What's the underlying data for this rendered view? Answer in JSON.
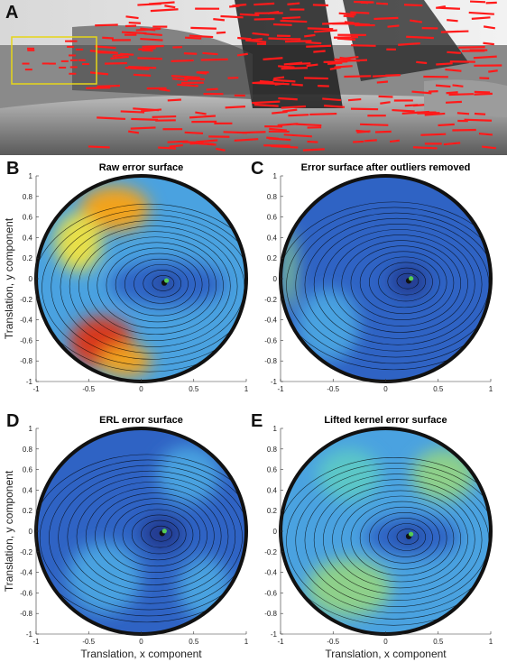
{
  "figure": {
    "photo_panel": {
      "letter": "A"
    },
    "x_axis_label": "Translation, x component",
    "y_axis_label": "Translation, y component"
  },
  "colors": {
    "flow_vectors": "#ff1a1a",
    "roi_box": "#e6d619",
    "minimum_marker_dark": "#111111",
    "minimum_marker_green": "#55cc55",
    "colormap": [
      "#233a8f",
      "#2f63c4",
      "#4aa2e0",
      "#5cc7c7",
      "#8ed08a",
      "#e8e04a",
      "#f2a31b",
      "#d8391b",
      "#9b0f10"
    ]
  },
  "chart_data": [
    {
      "type": "heatmap",
      "letter": "B",
      "title": "Raw error surface",
      "xlabel": "",
      "ylabel": "Translation, y component",
      "xlim": [
        -1,
        1
      ],
      "ylim": [
        -1,
        1
      ],
      "xticks": [
        "-1",
        "-0.5",
        "0",
        "0.5",
        "1"
      ],
      "yticks": [
        "1",
        "0.8",
        "0.6",
        "0.4",
        "0.2",
        "0",
        "-0.2",
        "-0.4",
        "-0.6",
        "-0.8",
        "-1"
      ],
      "domain": "unit disk",
      "minimum": {
        "x": 0.22,
        "y": -0.04
      },
      "regions": [
        {
          "level": 0.08,
          "x": 0.25,
          "y": -0.05,
          "rx": 0.55,
          "ry": 0.22
        },
        {
          "level": 0.0,
          "x": 0.22,
          "y": -0.04,
          "rx": 0.12,
          "ry": 0.08
        },
        {
          "level": 0.72,
          "x": -0.25,
          "y": 0.68,
          "rx": 0.33,
          "ry": 0.22
        },
        {
          "level": 0.58,
          "x": -0.6,
          "y": 0.35,
          "rx": 0.22,
          "ry": 0.28
        },
        {
          "level": 0.92,
          "x": -0.38,
          "y": -0.62,
          "rx": 0.3,
          "ry": 0.25
        },
        {
          "level": 0.8,
          "x": -0.15,
          "y": -0.8,
          "rx": 0.25,
          "ry": 0.15
        }
      ],
      "base_level": 0.3
    },
    {
      "type": "heatmap",
      "letter": "C",
      "title": "Error surface after outliers removed",
      "xlabel": "",
      "ylabel": "",
      "xlim": [
        -1,
        1
      ],
      "ylim": [
        -1,
        1
      ],
      "xticks": [
        "-1",
        "-0.5",
        "0",
        "0.5",
        "1"
      ],
      "yticks": [
        "1",
        "0.8",
        "0.6",
        "0.4",
        "0.2",
        "0",
        "-0.2",
        "-0.4",
        "-0.6",
        "-0.8",
        "-1"
      ],
      "domain": "unit disk",
      "minimum": {
        "x": 0.22,
        "y": -0.02
      },
      "regions": [
        {
          "level": 0.28,
          "x": -0.55,
          "y": -0.45,
          "rx": 0.3,
          "ry": 0.35
        },
        {
          "level": 0.45,
          "x": -0.92,
          "y": 0.1,
          "rx": 0.06,
          "ry": 0.4
        },
        {
          "level": 0.02,
          "x": 0.22,
          "y": -0.02,
          "rx": 0.18,
          "ry": 0.16
        }
      ],
      "base_level": 0.1
    },
    {
      "type": "heatmap",
      "letter": "D",
      "title": "ERL error surface",
      "xlabel": "Translation, x component",
      "ylabel": "Translation, y component",
      "xlim": [
        -1,
        1
      ],
      "ylim": [
        -1,
        1
      ],
      "xticks": [
        "-1",
        "-0.5",
        "0",
        "0.5",
        "1"
      ],
      "yticks": [
        "1",
        "0.8",
        "0.6",
        "0.4",
        "0.2",
        "0",
        "-0.2",
        "-0.4",
        "-0.6",
        "-0.8",
        "-1"
      ],
      "domain": "unit disk",
      "minimum": {
        "x": 0.2,
        "y": -0.02
      },
      "regions": [
        {
          "level": 0.25,
          "x": 0.45,
          "y": 0.55,
          "rx": 0.3,
          "ry": 0.28
        },
        {
          "level": 0.22,
          "x": -0.35,
          "y": -0.45,
          "rx": 0.35,
          "ry": 0.35
        },
        {
          "level": 0.2,
          "x": 0.6,
          "y": -0.55,
          "rx": 0.25,
          "ry": 0.3
        },
        {
          "level": 0.03,
          "x": 0.2,
          "y": -0.02,
          "rx": 0.2,
          "ry": 0.18
        }
      ],
      "base_level": 0.12
    },
    {
      "type": "heatmap",
      "letter": "E",
      "title": "Lifted kernel error surface",
      "xlabel": "Translation, x component",
      "ylabel": "",
      "xlim": [
        -1,
        1
      ],
      "ylim": [
        -1,
        1
      ],
      "xticks": [
        "-1",
        "-0.5",
        "0",
        "0.5",
        "1"
      ],
      "yticks": [
        "1",
        "0.8",
        "0.6",
        "0.4",
        "0.2",
        "0",
        "-0.2",
        "-0.4",
        "-0.6",
        "-0.8",
        "-1"
      ],
      "domain": "unit disk",
      "minimum": {
        "x": 0.22,
        "y": -0.05
      },
      "regions": [
        {
          "level": 0.45,
          "x": 0.55,
          "y": 0.55,
          "rx": 0.3,
          "ry": 0.25
        },
        {
          "level": 0.55,
          "x": -0.35,
          "y": -0.55,
          "rx": 0.4,
          "ry": 0.28
        },
        {
          "level": 0.35,
          "x": -0.35,
          "y": 0.55,
          "rx": 0.3,
          "ry": 0.25
        },
        {
          "level": 0.08,
          "x": 0.25,
          "y": -0.05,
          "rx": 0.45,
          "ry": 0.2
        },
        {
          "level": 0.0,
          "x": 0.22,
          "y": -0.05,
          "rx": 0.12,
          "ry": 0.08
        }
      ],
      "base_level": 0.22
    }
  ]
}
